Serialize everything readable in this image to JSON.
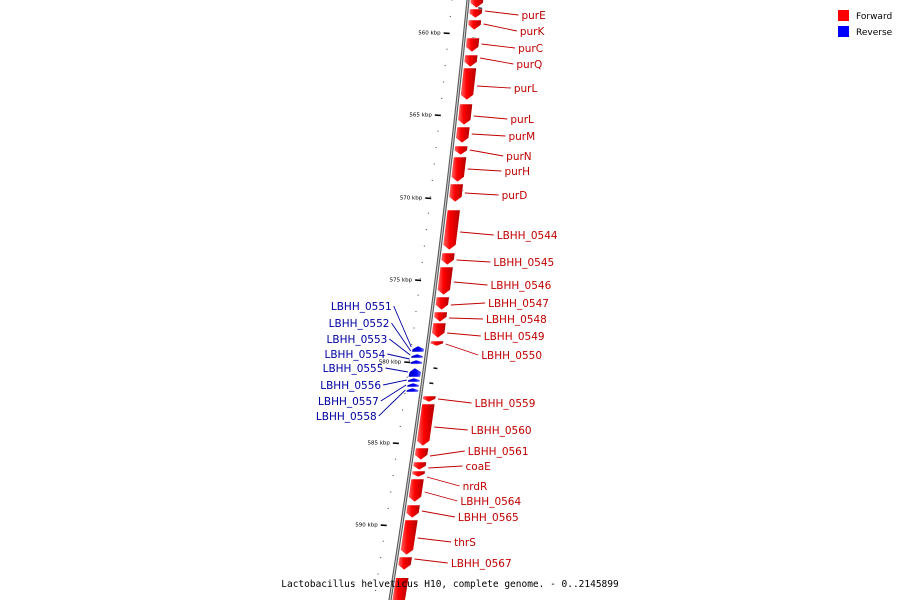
{
  "legend": [
    {
      "label": "Forward",
      "color": "#ff0000"
    },
    {
      "label": "Reverse",
      "color": "#0000ff"
    }
  ],
  "caption": "Lactobacillus helveticus H10, complete genome. - 0..2145899",
  "scale": {
    "tick_labels": [
      "560 kbp",
      "565 kbp",
      "570 kbp",
      "575 kbp",
      "580 kbp",
      "585 kbp",
      "590 kbp"
    ]
  },
  "genes": {
    "forward": [
      "purE",
      "purK",
      "purC",
      "purQ",
      "purL",
      "purL",
      "purM",
      "purN",
      "purH",
      "purD",
      "LBHH_0544",
      "LBHH_0545",
      "LBHH_0546",
      "LBHH_0547",
      "LBHH_0548",
      "LBHH_0549",
      "LBHH_0550",
      "LBHH_0559",
      "LBHH_0560",
      "LBHH_0561",
      "coaE",
      "nrdR",
      "LBHH_0564",
      "LBHH_0565",
      "thrS",
      "LBHH_0567"
    ],
    "reverse": [
      "LBHH_0551",
      "LBHH_0552",
      "LBHH_0553",
      "LBHH_0554",
      "LBHH_0555",
      "LBHH_0556",
      "LBHH_0557",
      "LBHH_0558"
    ]
  },
  "colors": {
    "forward": "#ff0000",
    "reverse": "#0000ff",
    "forward_label": "#c00000",
    "reverse_label": "#0000a0",
    "backbone": "#808080"
  }
}
